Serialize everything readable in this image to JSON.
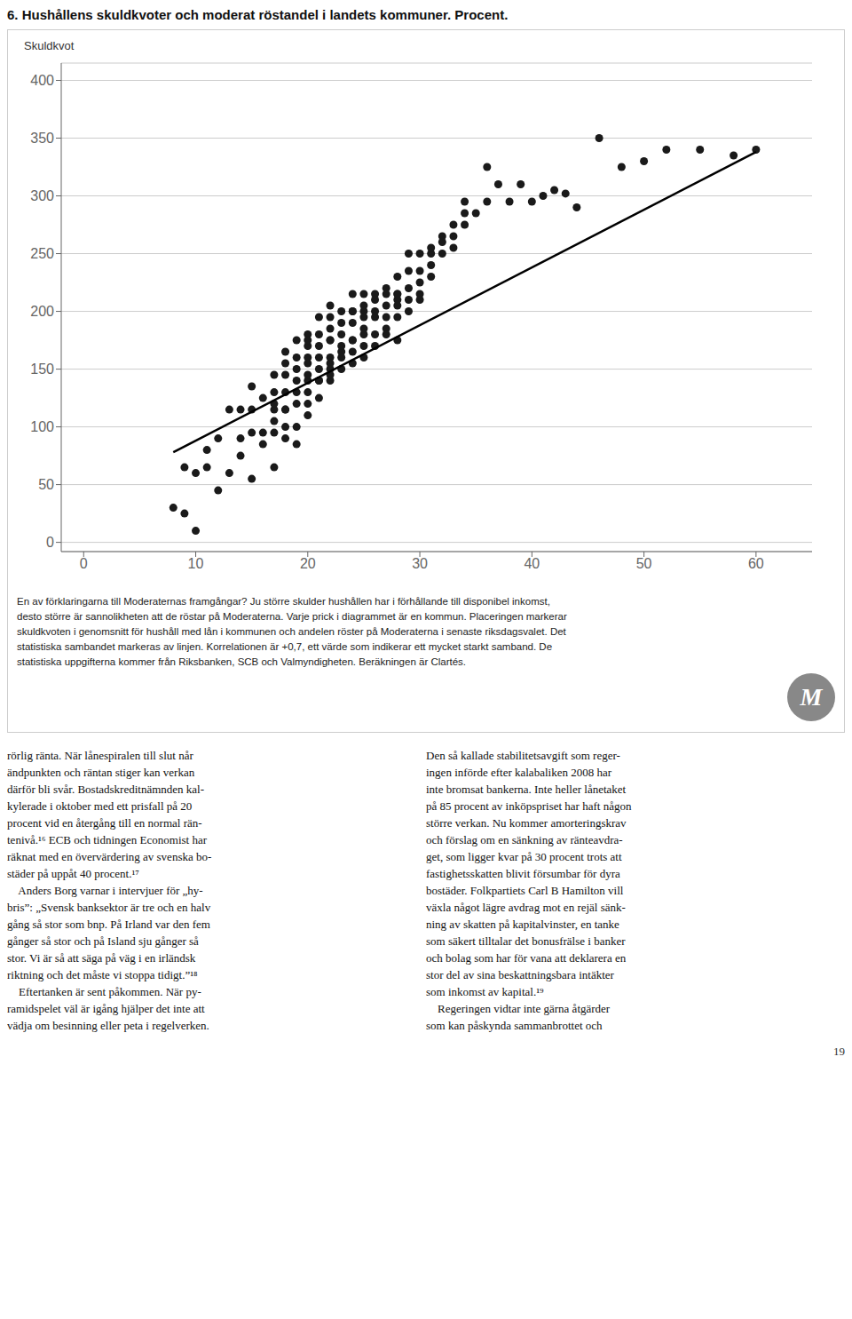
{
  "chart_data": {
    "type": "scatter",
    "title": "6. Hushållens skuldkvoter och moderat röstandel i landets kommuner. Procent.",
    "ylabel": "Skuldkvot",
    "xlim": [
      -2,
      65
    ],
    "xticks": [
      0,
      10,
      20,
      30,
      40,
      50,
      60
    ],
    "ylim": [
      -8,
      415
    ],
    "yticks": [
      0,
      50,
      100,
      150,
      200,
      250,
      300,
      350,
      400
    ],
    "grid": "y",
    "series": [
      {
        "type": "scatter",
        "color": "#1a1a1a",
        "marker": "circle",
        "x": [
          8,
          9,
          9,
          10,
          10,
          11,
          11,
          12,
          12,
          13,
          13,
          14,
          14,
          14,
          15,
          15,
          15,
          15,
          16,
          16,
          16,
          17,
          17,
          17,
          17,
          17,
          17,
          17,
          18,
          18,
          18,
          18,
          18,
          18,
          18,
          18,
          19,
          19,
          19,
          19,
          19,
          19,
          19,
          19,
          20,
          20,
          20,
          20,
          20,
          20,
          20,
          20,
          20,
          20,
          21,
          21,
          21,
          21,
          21,
          21,
          21,
          21,
          22,
          22,
          22,
          22,
          22,
          22,
          22,
          22,
          22,
          22,
          23,
          23,
          23,
          23,
          23,
          23,
          23,
          24,
          24,
          24,
          24,
          24,
          24,
          24,
          24,
          25,
          25,
          25,
          25,
          25,
          25,
          25,
          25,
          26,
          26,
          26,
          26,
          26,
          26,
          27,
          27,
          27,
          27,
          27,
          27,
          28,
          28,
          28,
          28,
          28,
          28,
          28,
          29,
          29,
          29,
          29,
          29,
          30,
          30,
          30,
          30,
          30,
          31,
          31,
          31,
          31,
          32,
          32,
          32,
          33,
          33,
          33,
          34,
          34,
          34,
          35,
          36,
          36,
          37,
          38,
          39,
          40,
          41,
          42,
          43,
          44,
          46,
          48,
          50,
          52,
          55,
          58,
          60
        ],
        "values": [
          30,
          65,
          25,
          60,
          10,
          80,
          65,
          90,
          45,
          115,
          60,
          90,
          75,
          115,
          55,
          95,
          115,
          135,
          95,
          125,
          85,
          115,
          130,
          95,
          105,
          65,
          120,
          145,
          115,
          130,
          165,
          100,
          90,
          145,
          155,
          115,
          120,
          140,
          160,
          100,
          85,
          150,
          175,
          130,
          140,
          160,
          120,
          170,
          155,
          110,
          130,
          180,
          175,
          145,
          150,
          170,
          140,
          180,
          160,
          125,
          140,
          195,
          155,
          175,
          160,
          140,
          185,
          175,
          150,
          145,
          205,
          195,
          165,
          180,
          150,
          200,
          190,
          170,
          160,
          175,
          200,
          165,
          190,
          155,
          215,
          175,
          200,
          180,
          200,
          170,
          195,
          185,
          160,
          215,
          205,
          195,
          215,
          180,
          170,
          200,
          210,
          205,
          185,
          220,
          195,
          180,
          215,
          210,
          195,
          215,
          175,
          230,
          205,
          215,
          220,
          235,
          200,
          210,
          250,
          210,
          225,
          250,
          215,
          235,
          240,
          250,
          230,
          255,
          250,
          260,
          265,
          255,
          275,
          265,
          275,
          285,
          295,
          285,
          295,
          325,
          310,
          295,
          310,
          295,
          300,
          305,
          302,
          290,
          350,
          325,
          330,
          340,
          340,
          335,
          340
        ]
      },
      {
        "type": "line",
        "color": "#000000",
        "line_style": "solid",
        "x": [
          8,
          60
        ],
        "values": [
          78,
          338
        ]
      }
    ],
    "logo": "M",
    "caption": [
      "En av förklaringarna till Moderaternas framgångar? Ju större skulder hushållen har i förhållande till disponibel inkomst,",
      "desto större är sannolikheten att de röstar på Moderaterna. Varje prick i diagrammet är en kommun. Placeringen markerar",
      "skuldkvoten i genomsnitt för hushåll med lån i kommunen och andelen röster på Moderaterna i senaste riksdagsvalet. Det",
      "statistiska sambandet markeras av linjen. Korrelationen är +0,7, ett värde som indikerar ett mycket starkt samband. De",
      "statistiska uppgifterna kommer från Riksbanken, SCB och Valmyndigheten. Beräkningen är Clartés."
    ],
    "body_columns": [
      [
        "rörlig ränta. När lånespiralen till slut når",
        "ändpunkten och räntan stiger kan verkan",
        "därför bli svår. Bostadskreditnämnden kal-",
        "kylerade i oktober med ett prisfall på 20",
        "procent vid en återgång till en normal rän-",
        "tenivå.¹⁶ ECB och tidningen Economist har",
        "räknat med en övervärdering av svenska bo-",
        "städer på uppåt 40 procent.¹⁷",
        "    Anders Borg varnar i intervjuer för „hy-",
        "bris”: „Svensk banksektor är tre och en halv",
        "gång så stor som bnp. På Irland var den fem",
        "gånger så stor och på Island sju gånger så",
        "stor. Vi är så att säga på väg i en irländsk",
        "riktning och det måste vi stoppa tidigt.”¹⁸",
        "    Eftertanken är sent påkommen. När py-",
        "ramidspelet väl är igång hjälper det inte att",
        "vädja om besinning eller peta i regelverken."
      ],
      [
        "Den så kallade stabilitetsavgift som reger-",
        "ingen införde efter kalabaliken 2008 har",
        "inte bromsat bankerna. Inte heller lånetaket",
        "på 85 procent av inköpspriset har haft någon",
        "större verkan. Nu kommer amorteringskrav",
        "och förslag om en sänkning av ränteavdra-",
        "get, som ligger kvar på 30 procent trots att",
        "fastighetsskatten blivit försumbar för dyra",
        "bostäder. Folkpartiets Carl B Hamilton vill",
        "växla något lägre avdrag mot en rejäl sänk-",
        "ning av skatten på kapitalvinster, en tanke",
        "som säkert tilltalar det bonusfrälse i banker",
        "och bolag som har för vana att deklarera en",
        "stor del av sina beskattningsbara intäkter",
        "som inkomst av kapital.¹⁹",
        "    Regeringen vidtar inte gärna åtgärder",
        "som kan påskynda sammanbrottet och"
      ]
    ],
    "page_number": "19"
  }
}
